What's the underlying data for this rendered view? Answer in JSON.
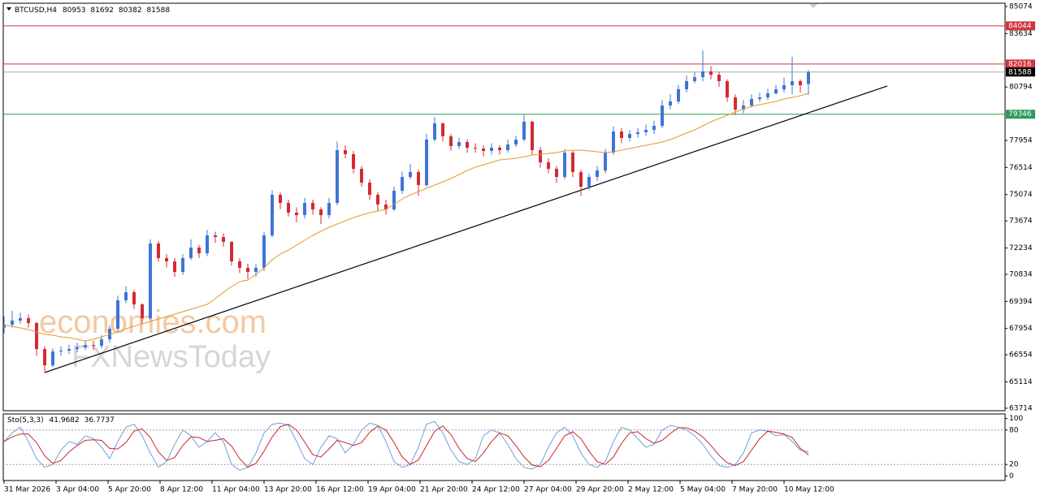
{
  "chart_data": {
    "type": "candlestick",
    "symbol": "BTCUSD,H4",
    "colors": {
      "up": "#3f74d6",
      "down": "#d42a35",
      "axis": "#000000"
    },
    "open": [
      68000,
      68156,
      68372,
      68500,
      68242,
      66861,
      65998,
      66732,
      66775,
      66861,
      66947,
      67077,
      67034,
      67379,
      67940,
      69451,
      69882,
      69235,
      68500,
      72472,
      71695,
      71523,
      70962,
      71695,
      72256,
      71954,
      72904,
      72817,
      72558,
      71523,
      71177,
      70962,
      71177,
      72904,
      75062,
      74630,
      74112,
      73983,
      74630,
      74285,
      73983,
      74630,
      77435,
      77220,
      76443,
      75709,
      75062,
      74544,
      74285,
      75278,
      76011,
      76270,
      75580,
      77997,
      78860,
      78169,
      77651,
      77867,
      77565,
      77522,
      77392,
      77565,
      77435,
      77738,
      77997,
      78946,
      77435,
      76788,
      76443,
      76011,
      77306,
      76270,
      75493,
      76011,
      76356,
      77306,
      78428,
      78083,
      78299,
      78385,
      78514,
      78730,
      79809,
      80025,
      80673,
      81104,
      81320,
      81622,
      81449,
      81104,
      80241,
      79593,
      79809,
      80155,
      80241,
      80457,
      80673,
      80889,
      81104,
      80953
    ],
    "high": [
      68600,
      68900,
      68800,
      68700,
      68300,
      67000,
      66900,
      67000,
      67100,
      67200,
      67300,
      67300,
      67600,
      68100,
      69700,
      70200,
      70000,
      69300,
      72700,
      72600,
      71900,
      71700,
      71900,
      72700,
      72400,
      73200,
      73100,
      73000,
      72600,
      71700,
      71400,
      71400,
      73100,
      75300,
      75200,
      74800,
      74400,
      74900,
      74800,
      74400,
      74900,
      77900,
      77700,
      77400,
      76600,
      75900,
      75200,
      74800,
      75500,
      76300,
      76700,
      76400,
      78300,
      79200,
      78900,
      78300,
      78100,
      78000,
      77800,
      77700,
      77800,
      77700,
      78000,
      78200,
      79300,
      79000,
      77600,
      77000,
      76600,
      77500,
      77400,
      76400,
      76200,
      76600,
      77500,
      78700,
      78600,
      78500,
      78600,
      78800,
      79000,
      80100,
      80400,
      80900,
      81400,
      81600,
      82744,
      81900,
      81600,
      81200,
      80400,
      80100,
      80400,
      80500,
      80700,
      80900,
      81300,
      82399,
      81200,
      81692
    ],
    "low": [
      67700,
      68000,
      68200,
      68000,
      66500,
      65610,
      65900,
      66500,
      66600,
      66700,
      66800,
      66800,
      66900,
      67200,
      67800,
      69300,
      69000,
      68200,
      68400,
      71500,
      71200,
      70700,
      70800,
      71600,
      71700,
      71800,
      72500,
      72300,
      71300,
      70900,
      70600,
      70700,
      71000,
      72800,
      74300,
      73900,
      73600,
      73800,
      74000,
      73500,
      73800,
      74500,
      77000,
      76200,
      75500,
      74800,
      74200,
      74000,
      74200,
      75100,
      75900,
      75000,
      75500,
      77900,
      77900,
      77400,
      77500,
      77300,
      77300,
      77100,
      77200,
      77200,
      77300,
      77600,
      77900,
      77200,
      76500,
      76200,
      75700,
      75900,
      76000,
      75000,
      75300,
      75800,
      76200,
      77200,
      77800,
      77900,
      78100,
      78200,
      78300,
      78600,
      79600,
      79900,
      80500,
      81000,
      81100,
      81200,
      80800,
      80000,
      79300,
      79400,
      79700,
      80000,
      80100,
      80400,
      80500,
      80400,
      80500,
      80382
    ],
    "close": [
      68156,
      68372,
      68500,
      68242,
      66861,
      65998,
      66732,
      66775,
      66861,
      66947,
      67077,
      67034,
      67379,
      67940,
      69451,
      69882,
      69235,
      68500,
      72472,
      71695,
      71523,
      70962,
      71695,
      72256,
      71954,
      72904,
      72817,
      72558,
      71523,
      71177,
      70962,
      71177,
      72904,
      75062,
      74630,
      74112,
      73983,
      74630,
      74285,
      73983,
      74630,
      77435,
      77220,
      76443,
      75709,
      75062,
      74544,
      74285,
      75278,
      76011,
      76270,
      75580,
      77997,
      78860,
      78169,
      77651,
      77867,
      77565,
      77522,
      77392,
      77565,
      77435,
      77738,
      77997,
      78946,
      77435,
      76788,
      76443,
      76011,
      77306,
      76270,
      75493,
      76011,
      76356,
      77306,
      78428,
      78083,
      78299,
      78385,
      78514,
      78730,
      79809,
      80025,
      80673,
      81104,
      81320,
      81622,
      81449,
      81104,
      80241,
      79593,
      79809,
      80155,
      80241,
      80457,
      80673,
      80889,
      81104,
      80889,
      81588
    ],
    "ma": {
      "color": "#e39a2e",
      "values": [
        68156,
        68070,
        67983,
        67897,
        67768,
        67638,
        67595,
        67509,
        67465,
        67379,
        67293,
        67379,
        67509,
        67638,
        67768,
        67940,
        68070,
        68199,
        68329,
        68458,
        68588,
        68717,
        68847,
        68976,
        69106,
        69235,
        69537,
        69882,
        70185,
        70443,
        70530,
        70832,
        71177,
        71609,
        71911,
        72127,
        72386,
        72645,
        72904,
        73119,
        73335,
        73508,
        73680,
        73853,
        73983,
        74112,
        74198,
        74285,
        74544,
        74846,
        75062,
        75234,
        75407,
        75580,
        75752,
        75925,
        76141,
        76356,
        76529,
        76659,
        76788,
        76917,
        76961,
        77004,
        77090,
        77176,
        77220,
        77263,
        77306,
        77392,
        77435,
        77435,
        77392,
        77349,
        77306,
        77349,
        77435,
        77522,
        77608,
        77694,
        77781,
        77867,
        77996,
        78169,
        78342,
        78514,
        78730,
        78946,
        79119,
        79291,
        79464,
        79637,
        79766,
        79852,
        79939,
        80025,
        80154,
        80241,
        80327,
        80457
      ]
    },
    "xlim": [
      -0.1,
      123.2
    ],
    "xticks": [
      {
        "value": 0,
        "label": "31 Mar 2026"
      },
      {
        "value": 6.4,
        "label": "3 Apr 04:00"
      },
      {
        "value": 12.8,
        "label": "5 Apr 20:00"
      },
      {
        "value": 19.2,
        "label": "8 Apr 12:00"
      },
      {
        "value": 25.6,
        "label": "11 Apr 04:00"
      },
      {
        "value": 32,
        "label": "13 Apr 20:00"
      },
      {
        "value": 38.4,
        "label": "16 Apr 12:00"
      },
      {
        "value": 44.8,
        "label": "19 Apr 04:00"
      },
      {
        "value": 51.2,
        "label": "21 Apr 20:00"
      },
      {
        "value": 57.6,
        "label": "24 Apr 12:00"
      },
      {
        "value": 64,
        "label": "27 Apr 04:00"
      },
      {
        "value": 70.4,
        "label": "29 Apr 20:00"
      },
      {
        "value": 76.8,
        "label": "2 May 12:00"
      },
      {
        "value": 83.2,
        "label": "5 May 04:00"
      },
      {
        "value": 89.6,
        "label": "7 May 20:00"
      },
      {
        "value": 96,
        "label": "10 May 12:00"
      }
    ],
    "ylim": [
      63581,
      85247
    ],
    "yticks": [
      85074,
      83634,
      80794,
      77954,
      76514,
      75074,
      73674,
      72234,
      70834,
      69394,
      67954,
      66554,
      65114,
      63714
    ],
    "levels": [
      {
        "value": 84044,
        "color": "#d0343c"
      },
      {
        "value": 82016,
        "color": "#d0343c"
      },
      {
        "value": 81588,
        "color": "#a8a8a8",
        "label_color": "#000000"
      },
      {
        "value": 79346,
        "color": "#2e9a5c"
      }
    ],
    "trendline": {
      "x": [
        5,
        108.7
      ],
      "y": [
        65610,
        80845
      ],
      "color": "#000000"
    },
    "watermarks": [
      "economies.com",
      "FXNewsToday"
    ],
    "oscillator": {
      "label": "Sto(5,3,3)",
      "ylim": [
        -8,
        108
      ],
      "yticks": [
        100,
        80,
        20,
        0
      ],
      "levels": [
        80,
        20
      ],
      "main": {
        "color": "#6fa0dc",
        "values": [
          60,
          75,
          85,
          60,
          30,
          15,
          20,
          45,
          60,
          55,
          70,
          65,
          50,
          30,
          60,
          85,
          90,
          70,
          40,
          15,
          25,
          55,
          80,
          70,
          50,
          60,
          75,
          60,
          20,
          10,
          15,
          40,
          75,
          90,
          92,
          88,
          60,
          30,
          20,
          50,
          70,
          65,
          40,
          55,
          80,
          92,
          88,
          60,
          25,
          15,
          20,
          50,
          90,
          95,
          75,
          45,
          25,
          20,
          30,
          70,
          80,
          75,
          55,
          30,
          15,
          12,
          20,
          50,
          75,
          85,
          70,
          40,
          20,
          15,
          25,
          60,
          85,
          80,
          65,
          50,
          55,
          80,
          88,
          85,
          80,
          70,
          55,
          35,
          18,
          15,
          20,
          40,
          75,
          80,
          78,
          70,
          72,
          60,
          45,
          41.9682
        ]
      },
      "signal": {
        "color": "#c8252f",
        "values": [
          60,
          68,
          73,
          73,
          58,
          35,
          22,
          27,
          42,
          53,
          62,
          63,
          62,
          48,
          47,
          58,
          78,
          82,
          67,
          42,
          27,
          32,
          53,
          68,
          67,
          60,
          62,
          65,
          52,
          30,
          15,
          22,
          43,
          68,
          86,
          90,
          80,
          59,
          37,
          33,
          47,
          62,
          58,
          53,
          58,
          76,
          87,
          80,
          58,
          33,
          20,
          28,
          53,
          78,
          87,
          72,
          48,
          30,
          25,
          40,
          60,
          75,
          70,
          53,
          33,
          19,
          16,
          27,
          48,
          70,
          77,
          65,
          43,
          25,
          20,
          33,
          57,
          75,
          77,
          65,
          57,
          62,
          74,
          84,
          84,
          78,
          68,
          53,
          36,
          23,
          18,
          25,
          45,
          65,
          78,
          76,
          73,
          67,
          48,
          36.7737
        ]
      }
    }
  }
}
